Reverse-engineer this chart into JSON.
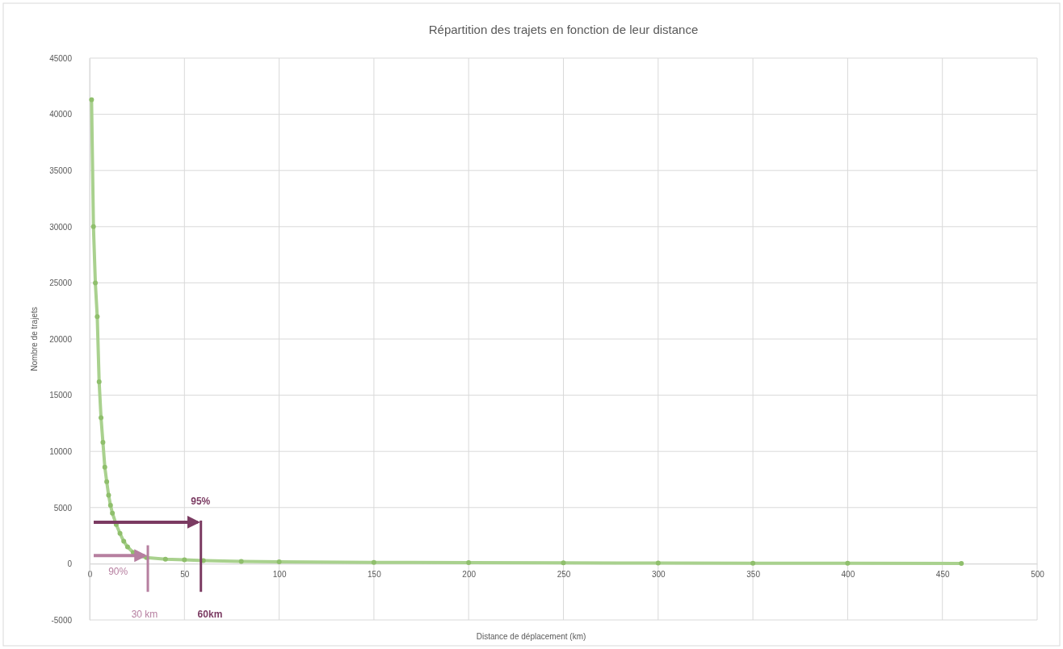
{
  "chart_data": {
    "type": "line",
    "title": "Répartition des trajets en fonction de leur distance",
    "xlabel": "Distance de déplacement (km)",
    "ylabel": "Nombre de trajets",
    "x": [
      1,
      2,
      3,
      4,
      5,
      6,
      7,
      8,
      9,
      10,
      11,
      12,
      14,
      16,
      18,
      20,
      23,
      26,
      30,
      40,
      50,
      60,
      80,
      100,
      150,
      200,
      250,
      300,
      350,
      400,
      460
    ],
    "series": [
      {
        "color": "#a9d18e",
        "values": [
          41300,
          30000,
          25000,
          22000,
          16200,
          13000,
          10800,
          8600,
          7300,
          6100,
          5200,
          4500,
          3500,
          2700,
          2000,
          1500,
          1000,
          700,
          550,
          400,
          350,
          280,
          200,
          180,
          120,
          100,
          80,
          60,
          50,
          40,
          30
        ]
      }
    ],
    "xlim": [
      0,
      500
    ],
    "xticks": [
      0,
      50,
      100,
      150,
      200,
      250,
      300,
      350,
      400,
      450,
      500
    ],
    "ylim": [
      -5000,
      45000
    ],
    "yticks": [
      -5000,
      0,
      5000,
      10000,
      15000,
      20000,
      25000,
      30000,
      35000,
      40000,
      45000
    ],
    "grid": true,
    "marker": "circle",
    "annotations": [
      "95%",
      "90%",
      "30 km",
      "60km"
    ]
  }
}
